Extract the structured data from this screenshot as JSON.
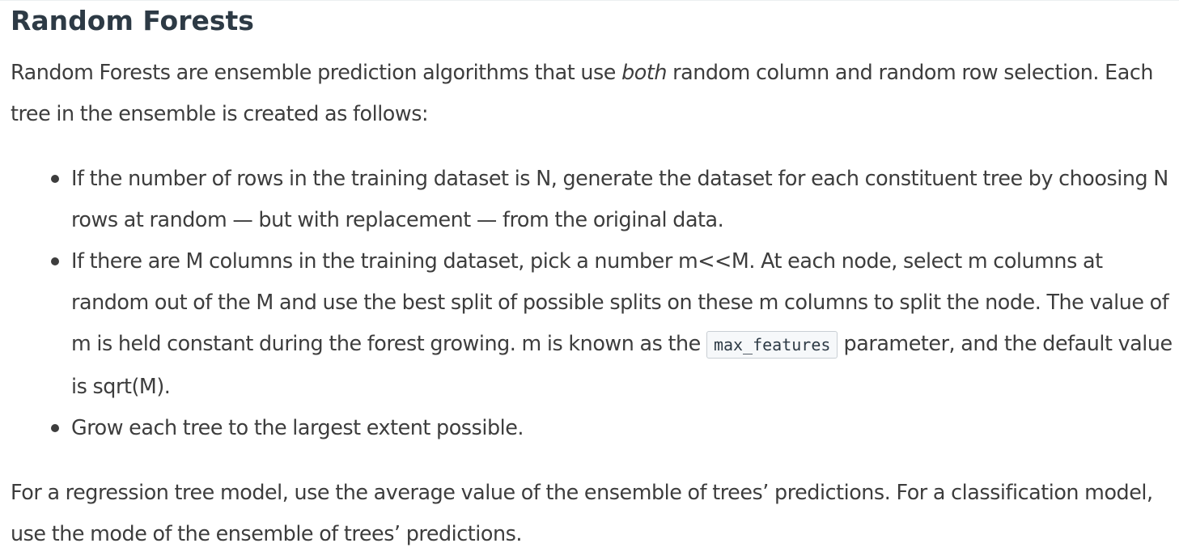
{
  "document": {
    "title": "Random Forests",
    "intro": {
      "before_emphasis": "Random Forests are ensemble prediction algorithms that use ",
      "emphasis": "both",
      "after_emphasis": " random column and random row selection. Each tree in the ensemble is created as follows:"
    },
    "steps": [
      {
        "text": "If the number of rows in the training dataset is N, generate the dataset for each constituent tree by choosing N rows at random — but with replacement — from the original data."
      },
      {
        "text_before_code": "If there are M columns in the training dataset, pick a number m<<M. At each node, select m columns at random out of the M and use the best split of possible splits on these m columns to split the node. The value of m is held constant during the forest growing. m is known as the ",
        "code": "max_features",
        "text_after_code": " parameter, and the default value is sqrt(M)."
      },
      {
        "text": "Grow each tree to the largest extent possible."
      }
    ],
    "closing": "For a regression tree model, use the average value of the ensemble of trees’ predictions. For a classification model, use the mode of the ensemble of trees’ predictions."
  }
}
